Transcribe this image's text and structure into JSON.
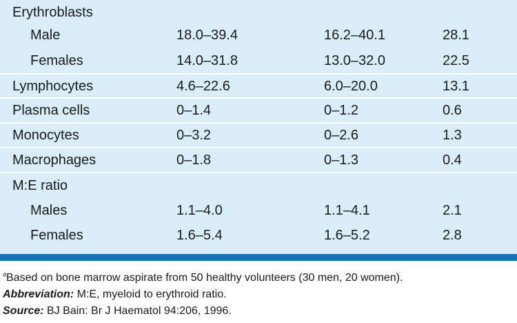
{
  "rows": [
    {
      "label": "Erythroblasts",
      "indent": false,
      "values": [
        "",
        "",
        ""
      ]
    },
    {
      "label": "Male",
      "indent": true,
      "values": [
        "18.0–39.4",
        "16.2–40.1",
        "28.1"
      ]
    },
    {
      "label": "Females",
      "indent": true,
      "values": [
        "14.0–31.8",
        "13.0–32.0",
        "22.5"
      ]
    },
    {
      "label": "Lymphocytes",
      "indent": false,
      "values": [
        "4.6–22.6",
        "6.0–20.0",
        "13.1"
      ]
    },
    {
      "label": "Plasma cells",
      "indent": false,
      "values": [
        "0–1.4",
        "0–1.2",
        "0.6"
      ]
    },
    {
      "label": "Monocytes",
      "indent": false,
      "values": [
        "0–3.2",
        "0–2.6",
        "1.3"
      ]
    },
    {
      "label": "Macrophages",
      "indent": false,
      "values": [
        "0–1.8",
        "0–1.3",
        "0.4"
      ]
    },
    {
      "label": "M:E ratio",
      "indent": false,
      "values": [
        "",
        "",
        ""
      ]
    },
    {
      "label": "Males",
      "indent": true,
      "values": [
        "1.1–4.0",
        "1.1–4.1",
        "2.1"
      ]
    },
    {
      "label": "Females",
      "indent": true,
      "values": [
        "1.6–5.4",
        "1.6–5.2",
        "2.8"
      ]
    }
  ],
  "footnotes": {
    "note_marker": "a",
    "note_text": "Based on bone marrow aspirate from 50 healthy volunteers (30 men, 20 women).",
    "abbreviation_label": "Abbreviation:",
    "abbreviation_text": " M:E, myeloid to erythroid ratio.",
    "source_label": "Source:",
    "source_text": " BJ Bain: Br J Haematol 94:206, 1996."
  },
  "colors": {
    "table_background": "#d9eef8",
    "rule": "#1a73b0"
  }
}
